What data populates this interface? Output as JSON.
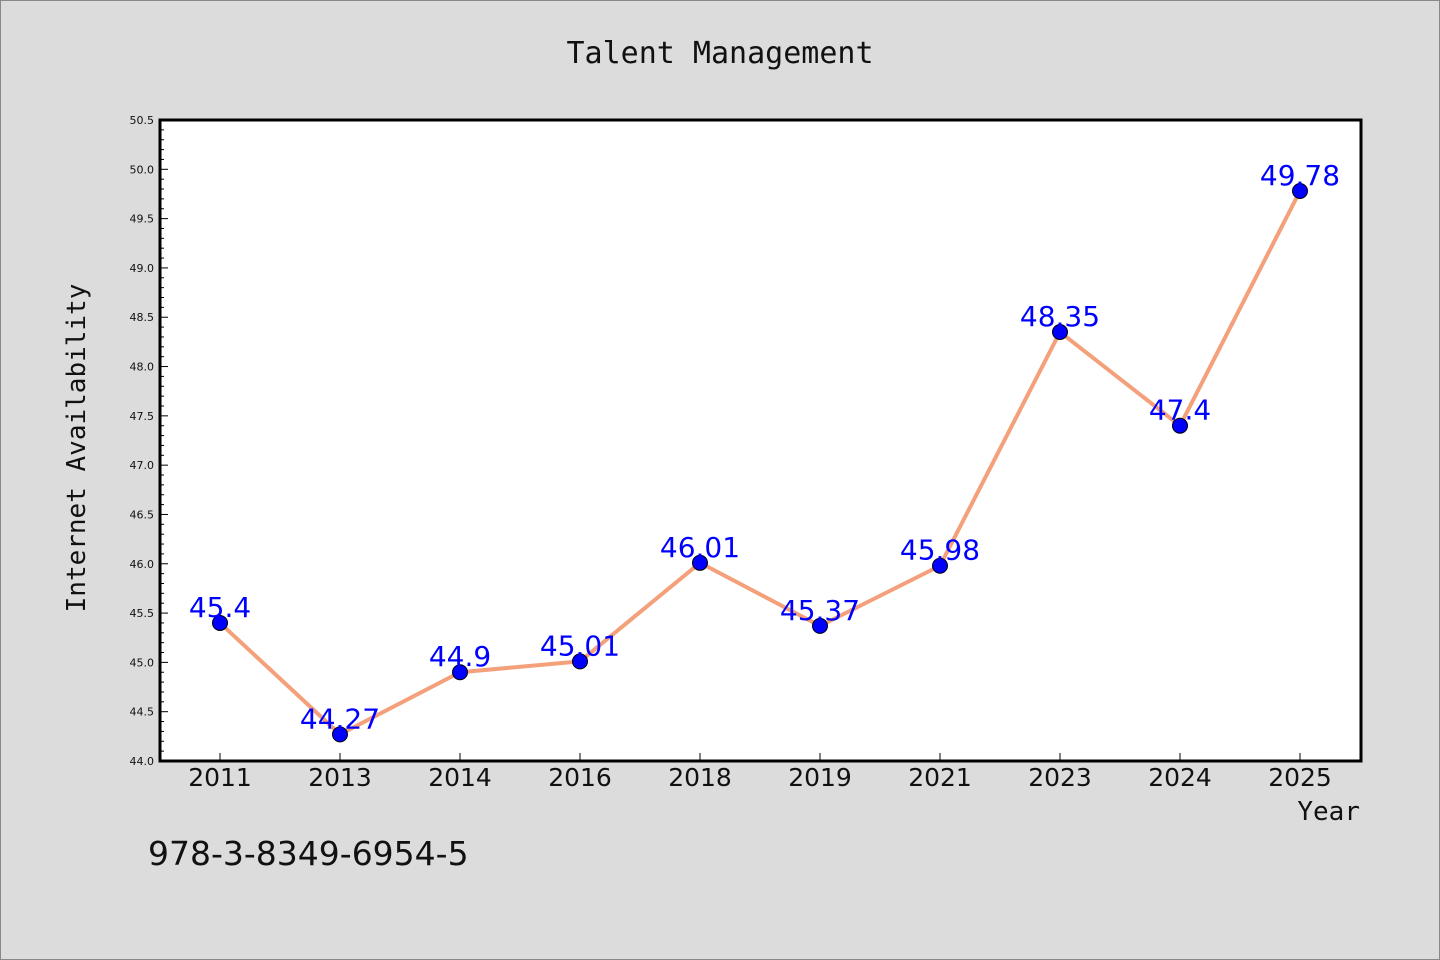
{
  "chart_data": {
    "type": "line",
    "title": "Talent Management",
    "xlabel": "Year",
    "ylabel": "Internet Availability",
    "categories": [
      "2011",
      "2013",
      "2014",
      "2016",
      "2018",
      "2019",
      "2021",
      "2023",
      "2024",
      "2025"
    ],
    "values": [
      45.4,
      44.27,
      44.9,
      45.01,
      46.01,
      45.37,
      45.98,
      48.35,
      47.4,
      49.78
    ],
    "data_labels": [
      "45.4",
      "44.27",
      "44.9",
      "45.01",
      "46.01",
      "45.37",
      "45.98",
      "48.35",
      "47.4",
      "49.78"
    ],
    "ylim": [
      44.0,
      50.5
    ],
    "yticks": [
      "44.0",
      "44.5",
      "45.0",
      "45.5",
      "46.0",
      "46.5",
      "47.0",
      "47.5",
      "48.0",
      "48.5",
      "49.0",
      "49.5",
      "50.0",
      "50.5"
    ],
    "grid": false,
    "legend": "none",
    "colors": {
      "background": "#dcdcdc",
      "plot_background": "#ffffff",
      "line": "#f4a07a",
      "marker": "#0000ff",
      "data_label": "#0000ff",
      "axes": "#000000"
    }
  },
  "footer": {
    "isbn": "978-3-8349-6954-5"
  }
}
